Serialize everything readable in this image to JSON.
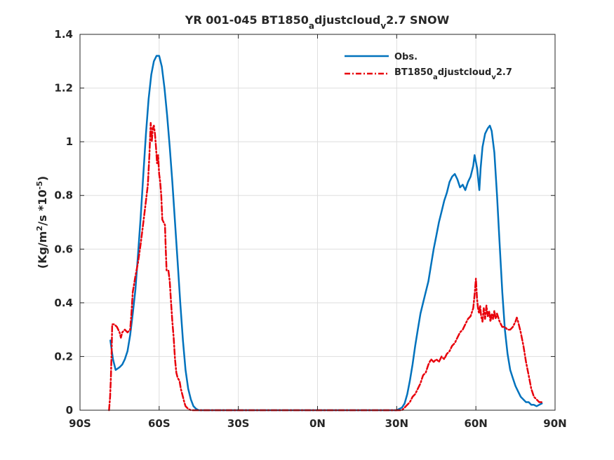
{
  "chart_data": {
    "type": "line",
    "title": "YR 001-045 BT1850",
    "title_sub_a": "a",
    "title_mid": "djustcloud",
    "title_sub_v": "v",
    "title_end": "2.7 SNOW",
    "xlabel": "",
    "ylabel_prefix": "(Kg/m",
    "ylabel_sup2": "2",
    "ylabel_mid": "/s *10",
    "ylabel_supexp": "-5",
    "ylabel_suffix": ")",
    "xlim": [
      -90,
      90
    ],
    "ylim": [
      0,
      1.4
    ],
    "xticks": [
      -90,
      -60,
      -30,
      0,
      30,
      60,
      90
    ],
    "xtick_labels": [
      "90S",
      "60S",
      "30S",
      "0N",
      "30N",
      "60N",
      "90N"
    ],
    "yticks": [
      0,
      0.2,
      0.4,
      0.6,
      0.8,
      1.0,
      1.2,
      1.4
    ],
    "ytick_labels": [
      "0",
      "0.2",
      "0.4",
      "0.6",
      "0.8",
      "1",
      "1.2",
      "1.4"
    ],
    "grid": true,
    "legend_position": "top-right",
    "series": [
      {
        "name": "Obs.",
        "color": "#0072BD",
        "style": "solid",
        "points": [
          [
            -78.5,
            0.26
          ],
          [
            -77.5,
            0.19
          ],
          [
            -76.5,
            0.15
          ],
          [
            -75,
            0.16
          ],
          [
            -74,
            0.17
          ],
          [
            -73,
            0.19
          ],
          [
            -72,
            0.22
          ],
          [
            -71,
            0.28
          ],
          [
            -70,
            0.36
          ],
          [
            -69,
            0.45
          ],
          [
            -68,
            0.58
          ],
          [
            -67,
            0.72
          ],
          [
            -66,
            0.88
          ],
          [
            -65,
            1.03
          ],
          [
            -64,
            1.16
          ],
          [
            -63,
            1.25
          ],
          [
            -62,
            1.3
          ],
          [
            -61,
            1.32
          ],
          [
            -60,
            1.32
          ],
          [
            -59,
            1.28
          ],
          [
            -58,
            1.2
          ],
          [
            -57,
            1.1
          ],
          [
            -56,
            0.98
          ],
          [
            -55,
            0.85
          ],
          [
            -54,
            0.7
          ],
          [
            -53,
            0.55
          ],
          [
            -52,
            0.4
          ],
          [
            -51,
            0.26
          ],
          [
            -50,
            0.15
          ],
          [
            -49,
            0.08
          ],
          [
            -48,
            0.04
          ],
          [
            -47,
            0.015
          ],
          [
            -46,
            0.005
          ],
          [
            -45,
            0.0
          ],
          [
            -30,
            0.0
          ],
          [
            0,
            0.0
          ],
          [
            30,
            0.0
          ],
          [
            31,
            0.005
          ],
          [
            32,
            0.01
          ],
          [
            33,
            0.025
          ],
          [
            34,
            0.06
          ],
          [
            35,
            0.11
          ],
          [
            36,
            0.17
          ],
          [
            37,
            0.24
          ],
          [
            38,
            0.3
          ],
          [
            39,
            0.36
          ],
          [
            40,
            0.4
          ],
          [
            41,
            0.44
          ],
          [
            42,
            0.48
          ],
          [
            43,
            0.54
          ],
          [
            44,
            0.6
          ],
          [
            45,
            0.65
          ],
          [
            46,
            0.7
          ],
          [
            47,
            0.74
          ],
          [
            48,
            0.78
          ],
          [
            49,
            0.81
          ],
          [
            50,
            0.85
          ],
          [
            51,
            0.87
          ],
          [
            52,
            0.88
          ],
          [
            53,
            0.86
          ],
          [
            54,
            0.83
          ],
          [
            55,
            0.84
          ],
          [
            56,
            0.82
          ],
          [
            57,
            0.85
          ],
          [
            58,
            0.87
          ],
          [
            59,
            0.91
          ],
          [
            59.5,
            0.95
          ],
          [
            60.5,
            0.9
          ],
          [
            61,
            0.85
          ],
          [
            61.3,
            0.82
          ],
          [
            61.8,
            0.9
          ],
          [
            62.5,
            0.98
          ],
          [
            63.5,
            1.03
          ],
          [
            64.5,
            1.05
          ],
          [
            65.3,
            1.06
          ],
          [
            66,
            1.04
          ],
          [
            67,
            0.96
          ],
          [
            68,
            0.8
          ],
          [
            69,
            0.62
          ],
          [
            70,
            0.44
          ],
          [
            71,
            0.3
          ],
          [
            72,
            0.21
          ],
          [
            73,
            0.15
          ],
          [
            74,
            0.12
          ],
          [
            75,
            0.09
          ],
          [
            76,
            0.07
          ],
          [
            77,
            0.05
          ],
          [
            78,
            0.04
          ],
          [
            79,
            0.03
          ],
          [
            80,
            0.03
          ],
          [
            81,
            0.02
          ],
          [
            82,
            0.02
          ],
          [
            83,
            0.015
          ],
          [
            84,
            0.02
          ],
          [
            85,
            0.025
          ]
        ]
      },
      {
        "name": "BT1850",
        "name_sub_a": "a",
        "name_mid": "djustcloud",
        "name_sub_v": "v",
        "name_end": "2.7",
        "color": "#E8000B",
        "style": "dashdot",
        "points": [
          [
            -79,
            0.0
          ],
          [
            -78.6,
            0.05
          ],
          [
            -78.3,
            0.12
          ],
          [
            -78,
            0.22
          ],
          [
            -77.8,
            0.32
          ],
          [
            -77,
            0.32
          ],
          [
            -76,
            0.31
          ],
          [
            -75,
            0.29
          ],
          [
            -74.5,
            0.27
          ],
          [
            -74,
            0.29
          ],
          [
            -73,
            0.3
          ],
          [
            -72,
            0.29
          ],
          [
            -71,
            0.3
          ],
          [
            -70.5,
            0.36
          ],
          [
            -70,
            0.44
          ],
          [
            -69,
            0.5
          ],
          [
            -68,
            0.55
          ],
          [
            -67,
            0.62
          ],
          [
            -66,
            0.7
          ],
          [
            -65,
            0.78
          ],
          [
            -64.3,
            0.84
          ],
          [
            -63.7,
            0.95
          ],
          [
            -63.2,
            1.07
          ],
          [
            -62.8,
            1.0
          ],
          [
            -62.4,
            1.05
          ],
          [
            -62,
            1.06
          ],
          [
            -61.6,
            1.03
          ],
          [
            -61.2,
            0.98
          ],
          [
            -60.8,
            0.92
          ],
          [
            -60.4,
            0.95
          ],
          [
            -60,
            0.88
          ],
          [
            -59.6,
            0.85
          ],
          [
            -59.2,
            0.8
          ],
          [
            -58.8,
            0.71
          ],
          [
            -58.3,
            0.7
          ],
          [
            -57.8,
            0.69
          ],
          [
            -57.5,
            0.6
          ],
          [
            -57.2,
            0.52
          ],
          [
            -56.5,
            0.52
          ],
          [
            -56,
            0.48
          ],
          [
            -55.5,
            0.4
          ],
          [
            -55,
            0.33
          ],
          [
            -54.5,
            0.27
          ],
          [
            -54,
            0.19
          ],
          [
            -53.5,
            0.14
          ],
          [
            -53,
            0.12
          ],
          [
            -52.3,
            0.11
          ],
          [
            -51.8,
            0.08
          ],
          [
            -51,
            0.05
          ],
          [
            -50.5,
            0.03
          ],
          [
            -50,
            0.015
          ],
          [
            -49,
            0.005
          ],
          [
            -48,
            0.0
          ],
          [
            -30,
            0.0
          ],
          [
            0,
            0.0
          ],
          [
            30,
            0.0
          ],
          [
            32,
            0.0
          ],
          [
            33,
            0.01
          ],
          [
            34,
            0.02
          ],
          [
            35,
            0.03
          ],
          [
            36,
            0.05
          ],
          [
            37,
            0.06
          ],
          [
            38,
            0.08
          ],
          [
            39,
            0.1
          ],
          [
            40,
            0.13
          ],
          [
            41,
            0.14
          ],
          [
            42,
            0.17
          ],
          [
            43,
            0.19
          ],
          [
            44,
            0.18
          ],
          [
            45,
            0.19
          ],
          [
            46,
            0.18
          ],
          [
            47,
            0.2
          ],
          [
            48,
            0.19
          ],
          [
            49,
            0.21
          ],
          [
            50,
            0.22
          ],
          [
            51,
            0.24
          ],
          [
            52,
            0.25
          ],
          [
            53,
            0.27
          ],
          [
            54,
            0.29
          ],
          [
            55,
            0.3
          ],
          [
            56,
            0.32
          ],
          [
            57,
            0.34
          ],
          [
            58,
            0.35
          ],
          [
            59,
            0.38
          ],
          [
            59.6,
            0.44
          ],
          [
            60,
            0.49
          ],
          [
            60.4,
            0.42
          ],
          [
            60.8,
            0.38
          ],
          [
            61.2,
            0.36
          ],
          [
            61.6,
            0.39
          ],
          [
            62,
            0.35
          ],
          [
            62.5,
            0.33
          ],
          [
            63,
            0.38
          ],
          [
            63.5,
            0.34
          ],
          [
            64,
            0.39
          ],
          [
            64.5,
            0.35
          ],
          [
            65,
            0.37
          ],
          [
            65.5,
            0.33
          ],
          [
            66,
            0.36
          ],
          [
            66.5,
            0.34
          ],
          [
            67,
            0.37
          ],
          [
            67.5,
            0.34
          ],
          [
            68,
            0.36
          ],
          [
            69,
            0.33
          ],
          [
            70,
            0.31
          ],
          [
            71,
            0.31
          ],
          [
            72,
            0.3
          ],
          [
            73,
            0.3
          ],
          [
            74,
            0.31
          ],
          [
            75,
            0.33
          ],
          [
            75.5,
            0.345
          ],
          [
            76,
            0.33
          ],
          [
            77,
            0.29
          ],
          [
            78,
            0.24
          ],
          [
            79,
            0.18
          ],
          [
            80,
            0.13
          ],
          [
            81,
            0.08
          ],
          [
            82,
            0.05
          ],
          [
            83,
            0.04
          ],
          [
            84,
            0.03
          ],
          [
            85,
            0.03
          ]
        ]
      }
    ]
  }
}
